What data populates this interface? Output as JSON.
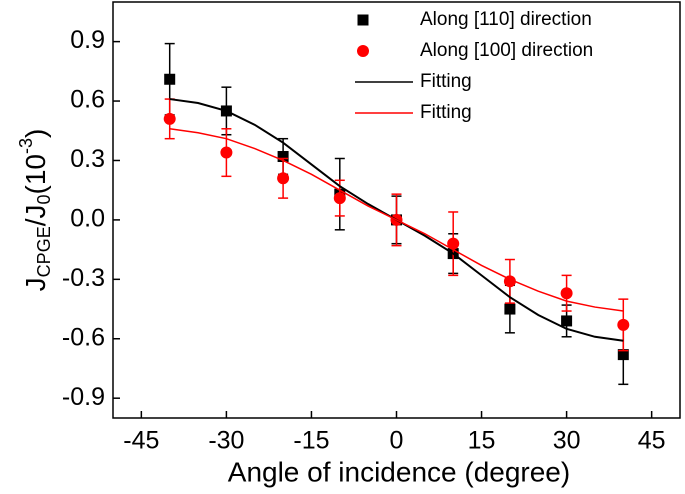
{
  "chart_data": {
    "type": "scatter",
    "x_label": "Angle of incidence (degree)",
    "y_label": [
      "J",
      "CPGE",
      "/J",
      "0",
      "(10",
      "-3",
      ")"
    ],
    "xlim": [
      -50,
      50
    ],
    "xticks": [
      -45,
      -30,
      -15,
      0,
      15,
      30,
      45
    ],
    "ylim": [
      -1.0,
      1.1
    ],
    "yticks": [
      -0.9,
      -0.6,
      -0.3,
      {
        "value": 0,
        "label": "0.0"
      },
      0.3,
      0.6,
      0.9
    ],
    "legend": "upper right",
    "series": [
      {
        "name": "Along [110] direction",
        "type": "scatter",
        "marker": "square",
        "color": "#000000",
        "x": [
          -40,
          -30,
          -20,
          -10,
          0,
          10,
          20,
          30,
          40
        ],
        "values": [
          0.71,
          0.55,
          0.32,
          0.13,
          0.0,
          -0.17,
          -0.45,
          -0.51,
          -0.68
        ],
        "errors": [
          0.18,
          0.12,
          0.09,
          0.18,
          0.12,
          0.1,
          0.12,
          0.08,
          0.15
        ]
      },
      {
        "name": "Along [100] direction",
        "type": "scatter",
        "marker": "circle",
        "color": "#ff0000",
        "x": [
          -40,
          -30,
          -20,
          -10,
          0,
          10,
          20,
          30,
          40
        ],
        "values": [
          0.51,
          0.34,
          0.21,
          0.11,
          0.0,
          -0.12,
          -0.31,
          -0.37,
          -0.53
        ],
        "errors": [
          0.1,
          0.12,
          0.1,
          0.09,
          0.13,
          0.16,
          0.11,
          0.09,
          0.13
        ]
      },
      {
        "name": "Fitting",
        "type": "line",
        "color": "#000000",
        "x": [
          -40,
          -35,
          -30,
          -25,
          -20,
          -15,
          -10,
          -5,
          0,
          5,
          10,
          15,
          20,
          25,
          30,
          35,
          40
        ],
        "values": [
          0.61,
          0.59,
          0.55,
          0.48,
          0.39,
          0.28,
          0.17,
          0.08,
          0.0,
          -0.08,
          -0.17,
          -0.28,
          -0.39,
          -0.48,
          -0.55,
          -0.59,
          -0.61
        ]
      },
      {
        "name": "Fitting",
        "type": "line",
        "color": "#ff0000",
        "x": [
          -40,
          -35,
          -30,
          -25,
          -20,
          -15,
          -10,
          -5,
          0,
          5,
          10,
          15,
          20,
          25,
          30,
          35,
          40
        ],
        "values": [
          0.46,
          0.44,
          0.41,
          0.36,
          0.3,
          0.23,
          0.15,
          0.07,
          0.0,
          -0.07,
          -0.15,
          -0.23,
          -0.3,
          -0.36,
          -0.41,
          -0.44,
          -0.46
        ]
      }
    ]
  }
}
